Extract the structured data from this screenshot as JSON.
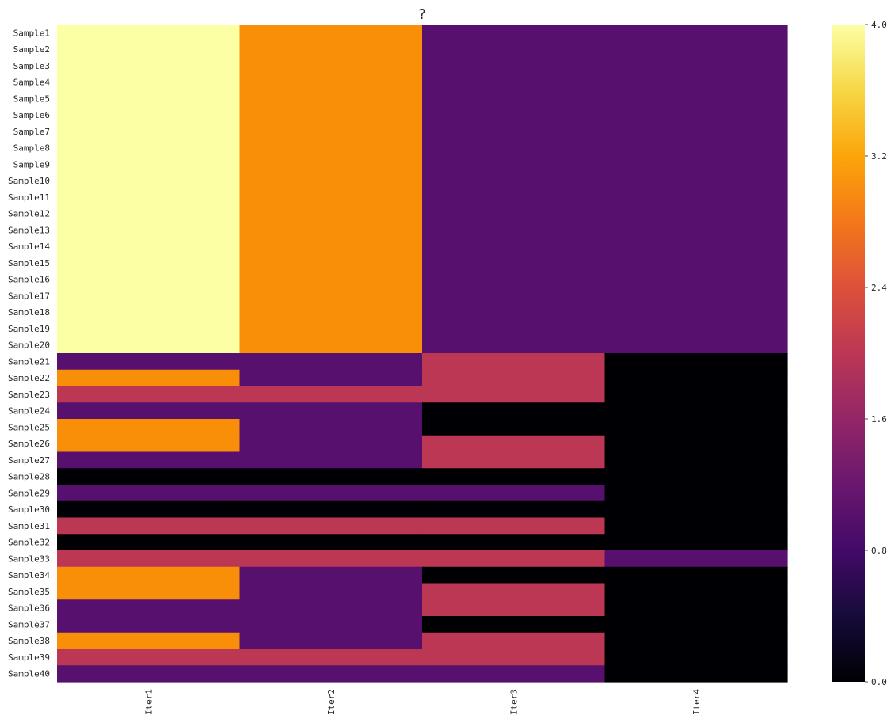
{
  "chart_data": {
    "type": "heatmap",
    "title": "?",
    "xlabel": "",
    "ylabel": "",
    "x_categories": [
      "Iter1",
      "Iter2",
      "Iter3",
      "Iter4"
    ],
    "y_categories": [
      "Sample1",
      "Sample2",
      "Sample3",
      "Sample4",
      "Sample5",
      "Sample6",
      "Sample7",
      "Sample8",
      "Sample9",
      "Sample10",
      "Sample11",
      "Sample12",
      "Sample13",
      "Sample14",
      "Sample15",
      "Sample16",
      "Sample17",
      "Sample18",
      "Sample19",
      "Sample20",
      "Sample21",
      "Sample22",
      "Sample23",
      "Sample24",
      "Sample25",
      "Sample26",
      "Sample27",
      "Sample28",
      "Sample29",
      "Sample30",
      "Sample31",
      "Sample32",
      "Sample33",
      "Sample34",
      "Sample35",
      "Sample36",
      "Sample37",
      "Sample38",
      "Sample39",
      "Sample40"
    ],
    "values": [
      [
        4,
        3,
        1,
        1
      ],
      [
        4,
        3,
        1,
        1
      ],
      [
        4,
        3,
        1,
        1
      ],
      [
        4,
        3,
        1,
        1
      ],
      [
        4,
        3,
        1,
        1
      ],
      [
        4,
        3,
        1,
        1
      ],
      [
        4,
        3,
        1,
        1
      ],
      [
        4,
        3,
        1,
        1
      ],
      [
        4,
        3,
        1,
        1
      ],
      [
        4,
        3,
        1,
        1
      ],
      [
        4,
        3,
        1,
        1
      ],
      [
        4,
        3,
        1,
        1
      ],
      [
        4,
        3,
        1,
        1
      ],
      [
        4,
        3,
        1,
        1
      ],
      [
        4,
        3,
        1,
        1
      ],
      [
        4,
        3,
        1,
        1
      ],
      [
        4,
        3,
        1,
        1
      ],
      [
        4,
        3,
        1,
        1
      ],
      [
        4,
        3,
        1,
        1
      ],
      [
        4,
        3,
        1,
        1
      ],
      [
        1,
        1,
        2,
        0
      ],
      [
        3,
        1,
        2,
        0
      ],
      [
        2,
        2,
        2,
        0
      ],
      [
        1,
        1,
        0,
        0
      ],
      [
        3,
        1,
        0,
        0
      ],
      [
        3,
        1,
        2,
        0
      ],
      [
        1,
        1,
        2,
        0
      ],
      [
        0,
        0,
        0,
        0
      ],
      [
        1,
        1,
        1,
        0
      ],
      [
        0,
        0,
        0,
        0
      ],
      [
        2,
        2,
        2,
        0
      ],
      [
        0,
        0,
        0,
        0
      ],
      [
        2,
        2,
        2,
        1
      ],
      [
        3,
        1,
        0,
        0
      ],
      [
        3,
        1,
        2,
        0
      ],
      [
        1,
        1,
        2,
        0
      ],
      [
        1,
        1,
        0,
        0
      ],
      [
        3,
        1,
        2,
        0
      ],
      [
        2,
        2,
        2,
        0
      ],
      [
        1,
        1,
        1,
        0
      ]
    ],
    "colorbar": {
      "min": 0.0,
      "max": 4.0,
      "ticks": [
        "0.0",
        "0.8",
        "1.6",
        "2.4",
        "3.2",
        "4.0"
      ],
      "colormap": "inferno"
    },
    "colors": {
      "0": "#000004",
      "1": "#57106e",
      "2": "#bc3754",
      "3": "#f98e09",
      "4": "#fcffa4"
    }
  }
}
